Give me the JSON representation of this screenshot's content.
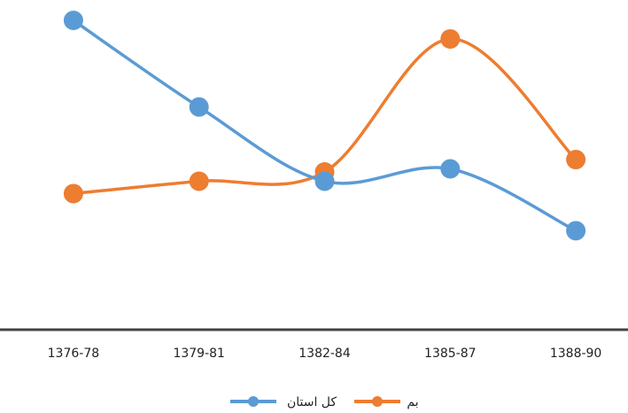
{
  "chart_data": {
    "type": "line",
    "categories": [
      "1376-78",
      "1379-81",
      "1382-84",
      "1385-87",
      "1388-90"
    ],
    "series": [
      {
        "name": "کل استان",
        "color": "#5b9bd5",
        "values": [
          100,
          72,
          48,
          52,
          32
        ]
      },
      {
        "name": "بم",
        "color": "#ed7d31",
        "values": [
          44,
          48,
          51,
          94,
          55
        ]
      }
    ],
    "ylim": [
      0,
      100
    ],
    "grid": false,
    "smooth": true,
    "legend": "bottom"
  }
}
